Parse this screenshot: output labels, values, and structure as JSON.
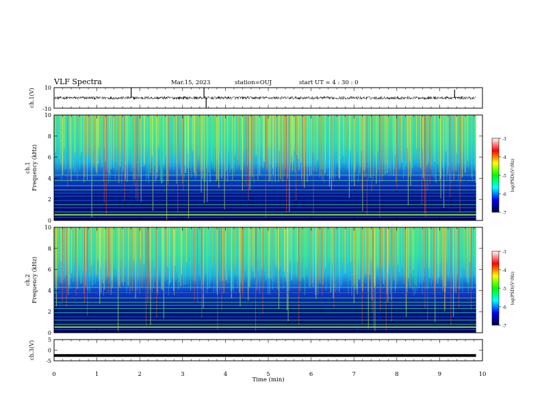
{
  "header": {
    "title": "VLF Spectra",
    "date": "Mar.15, 2023",
    "station": "station=OUJ",
    "start_ut": "start  UT =   4 : 30 : 0"
  },
  "colorbar": {
    "label": "log(PSD)(V²/Hz)",
    "ticks": [
      "-3",
      "-4",
      "-5",
      "-6",
      "-7"
    ],
    "colors": [
      "#ffffff",
      "#ff0000",
      "#ffff00",
      "#00ff00",
      "#00ffff",
      "#0000ff",
      "#000033"
    ]
  },
  "chart_data": [
    {
      "type": "line",
      "name": "ch1-waveform",
      "ylabel": "ch.1(V)",
      "ytick_labels": [
        "10",
        "-10"
      ],
      "ylim": [
        -10,
        10
      ],
      "xlim": [
        0,
        10
      ],
      "xlabel": "",
      "description_values": {
        "baseline": 0,
        "approx_noise_amplitude": 1.5
      },
      "spikes": [
        {
          "x": 1.8,
          "y": 10
        },
        {
          "x": 3.5,
          "y": 10
        },
        {
          "x": 3.55,
          "y": -10
        },
        {
          "x": 9.35,
          "y": 8
        }
      ],
      "data_end_x": 9.85
    },
    {
      "type": "heatmap",
      "name": "ch1-spectrogram",
      "ylabel_line1": "ch.1",
      "ylabel_line2": "Frequency (kHz)",
      "ytick_labels": [
        "10",
        "8",
        "6",
        "4",
        "2",
        "0"
      ],
      "ylim": [
        0,
        10
      ],
      "xlim": [
        0,
        10
      ],
      "data_end_x": 9.85,
      "zlim": [
        -7,
        -3
      ]
    },
    {
      "type": "heatmap",
      "name": "ch2-spectrogram",
      "ylabel_line1": "ch.2",
      "ylabel_line2": "Frequency (kHz)",
      "ytick_labels": [
        "10",
        "8",
        "6",
        "4",
        "2",
        "0"
      ],
      "ylim": [
        0,
        10
      ],
      "xlim": [
        0,
        10
      ],
      "data_end_x": 9.85,
      "zlim": [
        -7,
        -3
      ]
    },
    {
      "type": "line",
      "name": "ch3-waveform",
      "ylabel": "ch.3(V)",
      "ytick_labels": [
        "5",
        "0",
        "-5"
      ],
      "ylim": [
        -5,
        5
      ],
      "xlim": [
        0,
        10
      ],
      "level": -2.5,
      "data_end_x": 9.85
    }
  ],
  "xaxis": {
    "label": "Time (min)",
    "ticks": [
      "0",
      "1",
      "2",
      "3",
      "4",
      "5",
      "6",
      "7",
      "8",
      "9",
      "10"
    ]
  }
}
